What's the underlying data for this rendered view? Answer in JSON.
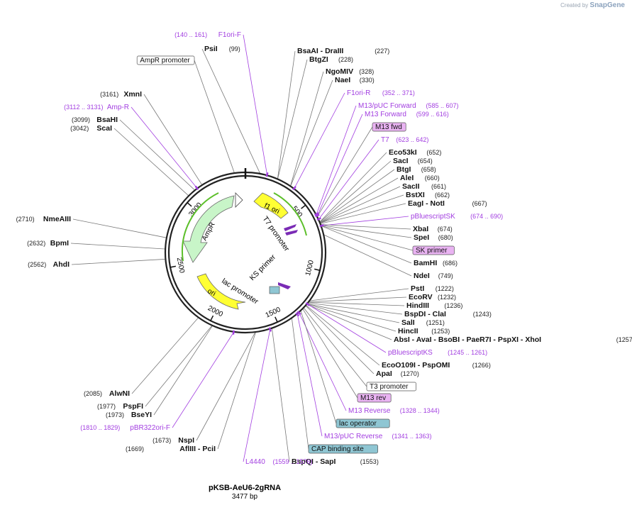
{
  "credit": {
    "prefix": "Created by",
    "brand": "SnapGene"
  },
  "plasmid": {
    "name": "pKSB-AeU6-2gRNA",
    "length": "3477 bp"
  },
  "scale_ticks": [
    "500",
    "1000",
    "1500",
    "2000",
    "2500",
    "3000"
  ],
  "features": [
    {
      "name": "AmpR",
      "color": "#c8f5c8"
    },
    {
      "name": "f1 ori",
      "color": "#ffff33"
    },
    {
      "name": "ori",
      "color": "#ffff33"
    },
    {
      "name": "T7 promoter"
    },
    {
      "name": "KS primer"
    },
    {
      "name": "lac promoter"
    }
  ],
  "labels_right": [
    {
      "kind": "primer",
      "name": "F1ori-F",
      "pos": "(140 .. 161)"
    },
    {
      "kind": "enzyme",
      "name": "PsiI",
      "pos": "(99)"
    },
    {
      "kind": "enzyme",
      "name": "BsaAI",
      "extra": "- DraIII",
      "pos": "(227)"
    },
    {
      "kind": "enzyme",
      "name": "BtgZI",
      "pos": "(228)"
    },
    {
      "kind": "enzyme",
      "name": "NgoMIV",
      "pos": "(328)"
    },
    {
      "kind": "enzyme",
      "name": "NaeI",
      "pos": "(330)"
    },
    {
      "kind": "primer",
      "name": "F1ori-R",
      "pos": "(352 .. 371)"
    },
    {
      "kind": "primer",
      "name": "M13/pUC Forward",
      "pos": "(585 .. 607)"
    },
    {
      "kind": "primer",
      "name": "M13 Forward",
      "pos": "(599 .. 616)"
    },
    {
      "kind": "box",
      "name": "M13 fwd"
    },
    {
      "kind": "primer",
      "name": "T7",
      "pos": "(623 .. 642)"
    },
    {
      "kind": "enzyme",
      "name": "Eco53kI",
      "pos": "(652)"
    },
    {
      "kind": "enzyme",
      "name": "SacI",
      "pos": "(654)"
    },
    {
      "kind": "enzyme",
      "name": "BtgI",
      "pos": "(658)"
    },
    {
      "kind": "enzyme",
      "name": "AleI",
      "pos": "(660)"
    },
    {
      "kind": "enzyme",
      "name": "SacII",
      "pos": "(661)"
    },
    {
      "kind": "enzyme",
      "name": "BstXI",
      "pos": "(662)"
    },
    {
      "kind": "enzyme",
      "name": "EagI",
      "extra": "- NotI",
      "pos": "(667)"
    },
    {
      "kind": "primer",
      "name": "pBluescriptSK",
      "pos": "(674 .. 690)"
    },
    {
      "kind": "enzyme",
      "name": "XbaI",
      "pos": "(674)"
    },
    {
      "kind": "enzyme",
      "name": "SpeI",
      "pos": "(680)"
    },
    {
      "kind": "box",
      "name": "SK primer"
    },
    {
      "kind": "enzyme",
      "name": "BamHI",
      "pos": "(686)"
    },
    {
      "kind": "enzyme",
      "name": "NdeI",
      "pos": "(749)"
    },
    {
      "kind": "enzyme",
      "name": "PstI",
      "pos": "(1222)"
    },
    {
      "kind": "enzyme",
      "name": "EcoRV",
      "pos": "(1232)"
    },
    {
      "kind": "enzyme",
      "name": "HindIII",
      "pos": "(1236)"
    },
    {
      "kind": "enzyme",
      "name": "BspDI",
      "extra": "- ClaI",
      "pos": "(1243)"
    },
    {
      "kind": "enzyme",
      "name": "SalI",
      "pos": "(1251)"
    },
    {
      "kind": "enzyme",
      "name": "HincII",
      "pos": "(1253)"
    },
    {
      "kind": "enzyme",
      "name": "AbsI",
      "extra": "- AvaI  - BsoBI  - PaeR7I  - PspXI  - XhoI",
      "pos": "(1257)"
    },
    {
      "kind": "primer",
      "name": "pBluescriptKS",
      "pos": "(1245 .. 1261)"
    },
    {
      "kind": "enzyme",
      "name": "EcoO109I",
      "extra": "- PspOMI",
      "pos": "(1266)"
    },
    {
      "kind": "enzyme",
      "name": "ApaI",
      "pos": "(1270)"
    },
    {
      "kind": "box",
      "name": "T3 promoter"
    },
    {
      "kind": "box",
      "name": "M13 rev"
    },
    {
      "kind": "primer",
      "name": "M13 Reverse",
      "pos": "(1328 .. 1344)"
    },
    {
      "kind": "box",
      "name": "lac operator"
    },
    {
      "kind": "primer",
      "name": "M13/pUC Reverse",
      "pos": "(1341 .. 1363)"
    },
    {
      "kind": "box",
      "name": "CAP binding site"
    },
    {
      "kind": "enzyme",
      "name": "BspQI",
      "extra": "- SapI",
      "pos": "(1553)"
    },
    {
      "kind": "primer",
      "name": "L4440",
      "pos": "(1559 .. 1576)"
    }
  ],
  "labels_left": [
    {
      "kind": "box",
      "name": "AmpR promoter"
    },
    {
      "kind": "enzyme",
      "name": "XmnI",
      "pos": "(3161)"
    },
    {
      "kind": "primer",
      "name": "Amp-R",
      "pos": "(3112 .. 3131)"
    },
    {
      "kind": "enzyme",
      "name": "BsaHI",
      "pos": "(3099)"
    },
    {
      "kind": "enzyme",
      "name": "ScaI",
      "pos": "(3042)"
    },
    {
      "kind": "enzyme",
      "name": "NmeAIII",
      "pos": "(2710)"
    },
    {
      "kind": "enzyme",
      "name": "BpmI",
      "pos": "(2632)"
    },
    {
      "kind": "enzyme",
      "name": "AhdI",
      "pos": "(2562)"
    },
    {
      "kind": "enzyme",
      "name": "AlwNI",
      "pos": "(2085)"
    },
    {
      "kind": "enzyme",
      "name": "PspFI",
      "pos": "(1977)"
    },
    {
      "kind": "enzyme",
      "name": "BseYI",
      "pos": "(1973)"
    },
    {
      "kind": "primer",
      "name": "pBR322ori-F",
      "pos": "(1810 .. 1829)"
    },
    {
      "kind": "enzyme",
      "name": "NspI",
      "pos": "(1673)"
    },
    {
      "kind": "enzyme",
      "name": "AflIII",
      "extra": "- PciI",
      "pos": "(1669)"
    }
  ],
  "colors": {
    "primer": "#a23ee0",
    "box_primer": "#e9b3f2",
    "box_operator": "#8fc6d3",
    "backbone": "#222222"
  }
}
